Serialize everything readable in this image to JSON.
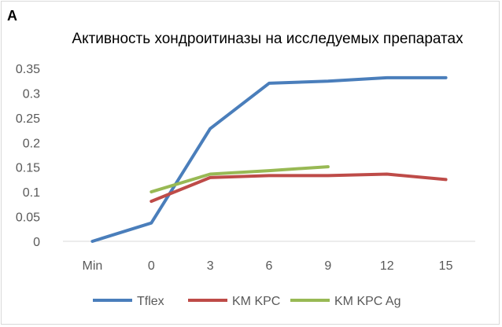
{
  "panel_label": "A",
  "chart_data": {
    "type": "line",
    "title": "Активность хондроитиназы на исследуемых препаратах",
    "xlabel": "",
    "ylabel": "",
    "categories": [
      "Min",
      "0",
      "3",
      "6",
      "9",
      "12",
      "15"
    ],
    "y_ticks": [
      "0",
      "0.05",
      "0.1",
      "0.15",
      "0.2",
      "0.25",
      "0.3",
      "0.35"
    ],
    "ylim": [
      0,
      0.35
    ],
    "grid": false,
    "legend_position": "bottom",
    "series": [
      {
        "name": "Tflex",
        "color": "#4a7ebb",
        "values": [
          0,
          0.037,
          0.228,
          0.32,
          0.324,
          0.331,
          0.331
        ]
      },
      {
        "name": "KM KPC",
        "color": "#be4b48",
        "values": [
          null,
          0.081,
          0.129,
          0.133,
          0.133,
          0.136,
          0.125
        ]
      },
      {
        "name": "KM KPC Ag",
        "color": "#98b954",
        "values": [
          null,
          0.1,
          0.136,
          0.143,
          0.151,
          null,
          null
        ]
      }
    ]
  }
}
